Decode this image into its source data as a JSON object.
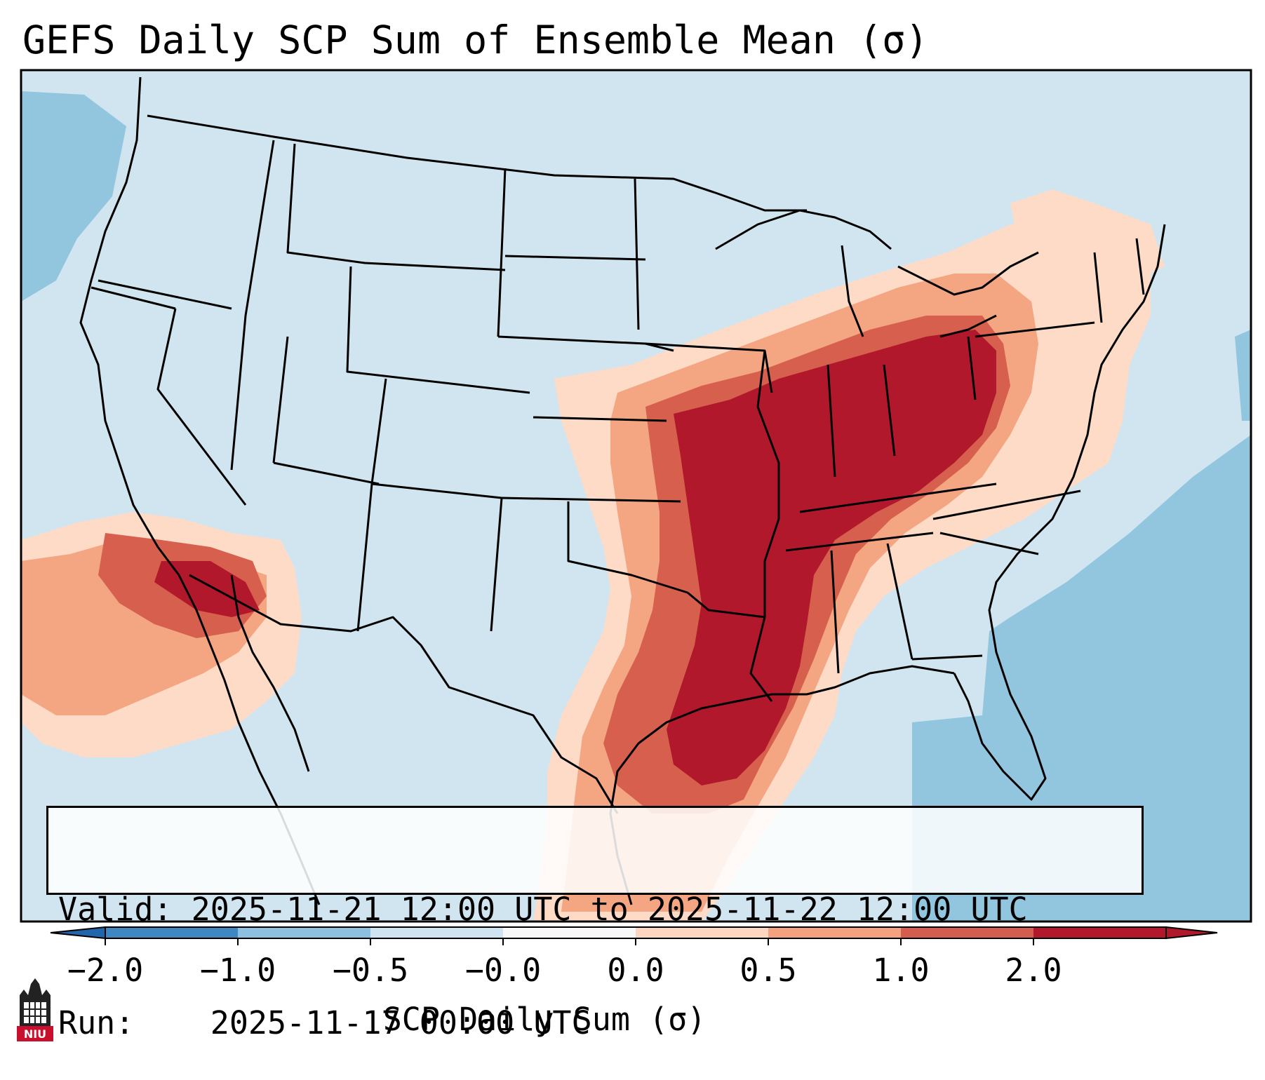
{
  "title": "GEFS Daily SCP Sum of Ensemble Mean (σ)",
  "info": {
    "valid_label": "Valid:",
    "valid_value": "2025-11-21 12:00 UTC to 2025-11-22 12:00 UTC",
    "run_label": "Run:",
    "run_value": "2025-11-17 00:00 UTC"
  },
  "colorbar": {
    "label": "SCP Daily Sum (σ)",
    "ticks": [
      "−2.0",
      "−1.0",
      "−0.5",
      "−0.0",
      "0.0",
      "0.5",
      "1.0",
      "2.0"
    ],
    "colors": [
      "#3f87c0",
      "#8cc0de",
      "#cfe4f0",
      "#f7f7f7",
      "#fcd6c1",
      "#f3a17f",
      "#d35d4f",
      "#b2182b"
    ],
    "extend": "both"
  },
  "map_legend": {
    "neutral": "#d1e5f0",
    "weak_low": "#92c5de",
    "weak_high": "#fddbc7",
    "moderate": "#f4a582",
    "high": "#d6604d",
    "very_high": "#b2182b"
  },
  "logo": {
    "text": "NIU",
    "color": "#c8102e"
  }
}
